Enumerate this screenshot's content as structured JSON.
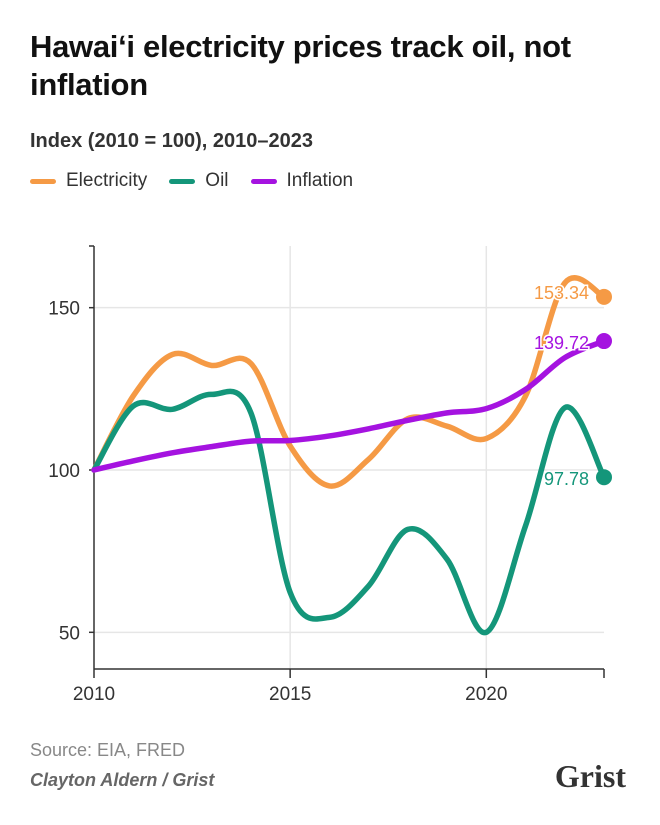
{
  "title": "Hawaiʻi electricity prices track oil, not inflation",
  "subtitle": "Index (2010 = 100), 2010–2023",
  "source": "Source: EIA, FRED",
  "credit": "Clayton Aldern / Grist",
  "logo": "Grist",
  "chart_data": {
    "type": "line",
    "title": "Hawaiʻi electricity prices track oil, not inflation",
    "subtitle": "Index (2010 = 100), 2010–2023",
    "x": [
      2010,
      2011,
      2012,
      2013,
      2014,
      2015,
      2016,
      2017,
      2018,
      2019,
      2020,
      2021,
      2022,
      2023
    ],
    "xticks": [
      2010,
      2015,
      2020
    ],
    "yticks": [
      50,
      100,
      150
    ],
    "xlim": [
      2010,
      2023
    ],
    "ylim": [
      38.7,
      169
    ],
    "grid": true,
    "legend": "top-left",
    "series": [
      {
        "name": "Electricity",
        "color": "#f59a45",
        "end_label": "153.34",
        "values": [
          100,
          122.8,
          135.6,
          132.2,
          132.8,
          107.4,
          95.1,
          103.3,
          115.8,
          113.5,
          109.7,
          122.8,
          157.6,
          153.34
        ]
      },
      {
        "name": "Oil",
        "color": "#14967a",
        "end_label": "97.78",
        "values": [
          100,
          119.7,
          118.7,
          123.3,
          117.6,
          62.3,
          54.6,
          64.3,
          81.7,
          72.5,
          50,
          82.8,
          119.2,
          97.78
        ]
      },
      {
        "name": "Inflation",
        "color": "#a513e0",
        "end_label": "139.72",
        "values": [
          100,
          102.8,
          105.3,
          107.2,
          108.9,
          109.1,
          110.5,
          112.7,
          115.3,
          117.6,
          118.9,
          124.8,
          134.6,
          139.72
        ]
      }
    ]
  }
}
